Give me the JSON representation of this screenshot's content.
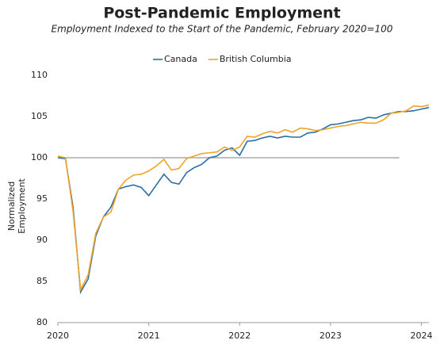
{
  "chart_data": {
    "type": "line",
    "title": "Post-Pandemic Employment",
    "subtitle": "Employment Indexed to the Start of the Pandemic, February 2020=100",
    "y_label": [
      "Normalized",
      "Employment"
    ],
    "x": [
      2020,
      2020.083,
      2020.167,
      2020.25,
      2020.333,
      2020.417,
      2020.5,
      2020.583,
      2020.667,
      2020.75,
      2020.833,
      2020.917,
      2021,
      2021.083,
      2021.167,
      2021.25,
      2021.333,
      2021.417,
      2021.5,
      2021.583,
      2021.667,
      2021.75,
      2021.833,
      2021.917,
      2022,
      2022.083,
      2022.167,
      2022.25,
      2022.333,
      2022.417,
      2022.5,
      2022.583,
      2022.667,
      2022.75,
      2022.833,
      2022.917,
      2023,
      2023.083,
      2023.167,
      2023.25,
      2023.333,
      2023.417,
      2023.5,
      2023.583,
      2023.667,
      2023.75,
      2023.833,
      2023.917,
      2024,
      2024.083
    ],
    "series": [
      {
        "name": "Canada",
        "color": "#2b6ea6",
        "values": [
          100,
          99.9,
          94,
          83.7,
          85.3,
          90.5,
          92.8,
          94,
          96.2,
          96.5,
          96.7,
          96.4,
          95.4,
          96.7,
          98,
          97,
          96.8,
          98.2,
          98.8,
          99.2,
          100,
          100.2,
          100.9,
          101.2,
          100.3,
          102,
          102.1,
          102.4,
          102.6,
          102.4,
          102.6,
          102.5,
          102.5,
          103,
          103.1,
          103.5,
          104,
          104.1,
          104.3,
          104.5,
          104.6,
          104.9,
          104.8,
          105.2,
          105.4,
          105.6,
          105.6,
          105.7,
          105.9,
          106.1
        ]
      },
      {
        "name": "British Columbia",
        "color": "#f0a32a",
        "values": [
          100.2,
          100,
          93.5,
          84,
          85.8,
          90.8,
          92.8,
          93.4,
          96.2,
          97.3,
          97.9,
          98,
          98.4,
          99,
          99.8,
          98.5,
          98.7,
          99.9,
          100.2,
          100.5,
          100.6,
          100.7,
          101.3,
          100.9,
          101.3,
          102.6,
          102.5,
          102.9,
          103.2,
          103,
          103.4,
          103.1,
          103.6,
          103.5,
          103.3,
          103.4,
          103.6,
          103.8,
          103.9,
          104.1,
          104.3,
          104.2,
          104.2,
          104.6,
          105.4,
          105.5,
          105.7,
          106.3,
          106.2,
          106.4
        ]
      }
    ],
    "reference_line": 100,
    "xlim": [
      2020,
      2024.083
    ],
    "xticks": [
      2020,
      2021,
      2022,
      2023,
      2024
    ],
    "ylim": [
      80,
      110
    ],
    "yticks": [
      80,
      85,
      90,
      95,
      100,
      105,
      110
    ],
    "legend": "top"
  }
}
